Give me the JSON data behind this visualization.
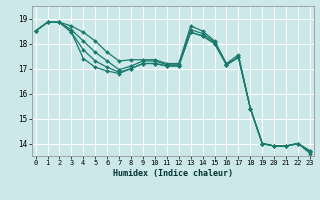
{
  "xlabel": "Humidex (Indice chaleur)",
  "bg_color": "#cce8e8",
  "grid_color": "#ffffff",
  "line_color": "#1a7a6e",
  "xlim": [
    -0.3,
    23.3
  ],
  "ylim": [
    13.5,
    19.5
  ],
  "yticks": [
    14,
    15,
    16,
    17,
    18,
    19
  ],
  "xticks": [
    0,
    1,
    2,
    3,
    4,
    5,
    6,
    7,
    8,
    9,
    10,
    11,
    12,
    13,
    14,
    15,
    16,
    17,
    18,
    19,
    20,
    21,
    22,
    23
  ],
  "series": [
    [
      18.5,
      18.85,
      18.85,
      18.7,
      18.45,
      18.1,
      17.65,
      17.3,
      17.35,
      17.35,
      17.35,
      17.2,
      17.2,
      18.7,
      18.5,
      18.1,
      17.2,
      17.55,
      15.4,
      14.0,
      13.9,
      13.9,
      14.0,
      13.7
    ],
    [
      18.5,
      18.85,
      18.85,
      18.55,
      18.1,
      17.65,
      17.3,
      16.95,
      17.1,
      17.3,
      17.3,
      17.15,
      17.15,
      18.55,
      18.4,
      18.05,
      17.15,
      17.45,
      15.4,
      14.0,
      13.9,
      13.9,
      14.0,
      13.7
    ],
    [
      18.5,
      18.85,
      18.85,
      18.45,
      17.75,
      17.3,
      17.05,
      16.85,
      17.0,
      17.2,
      17.2,
      17.1,
      17.1,
      18.45,
      18.3,
      18.0,
      17.15,
      17.45,
      15.4,
      14.0,
      13.9,
      13.9,
      14.0,
      13.65
    ],
    [
      18.5,
      18.85,
      18.85,
      18.45,
      17.4,
      17.05,
      16.9,
      16.8,
      17.0,
      17.2,
      17.2,
      17.1,
      17.1,
      18.45,
      18.3,
      18.0,
      17.15,
      17.45,
      15.4,
      14.0,
      13.9,
      13.9,
      14.0,
      13.6
    ]
  ]
}
